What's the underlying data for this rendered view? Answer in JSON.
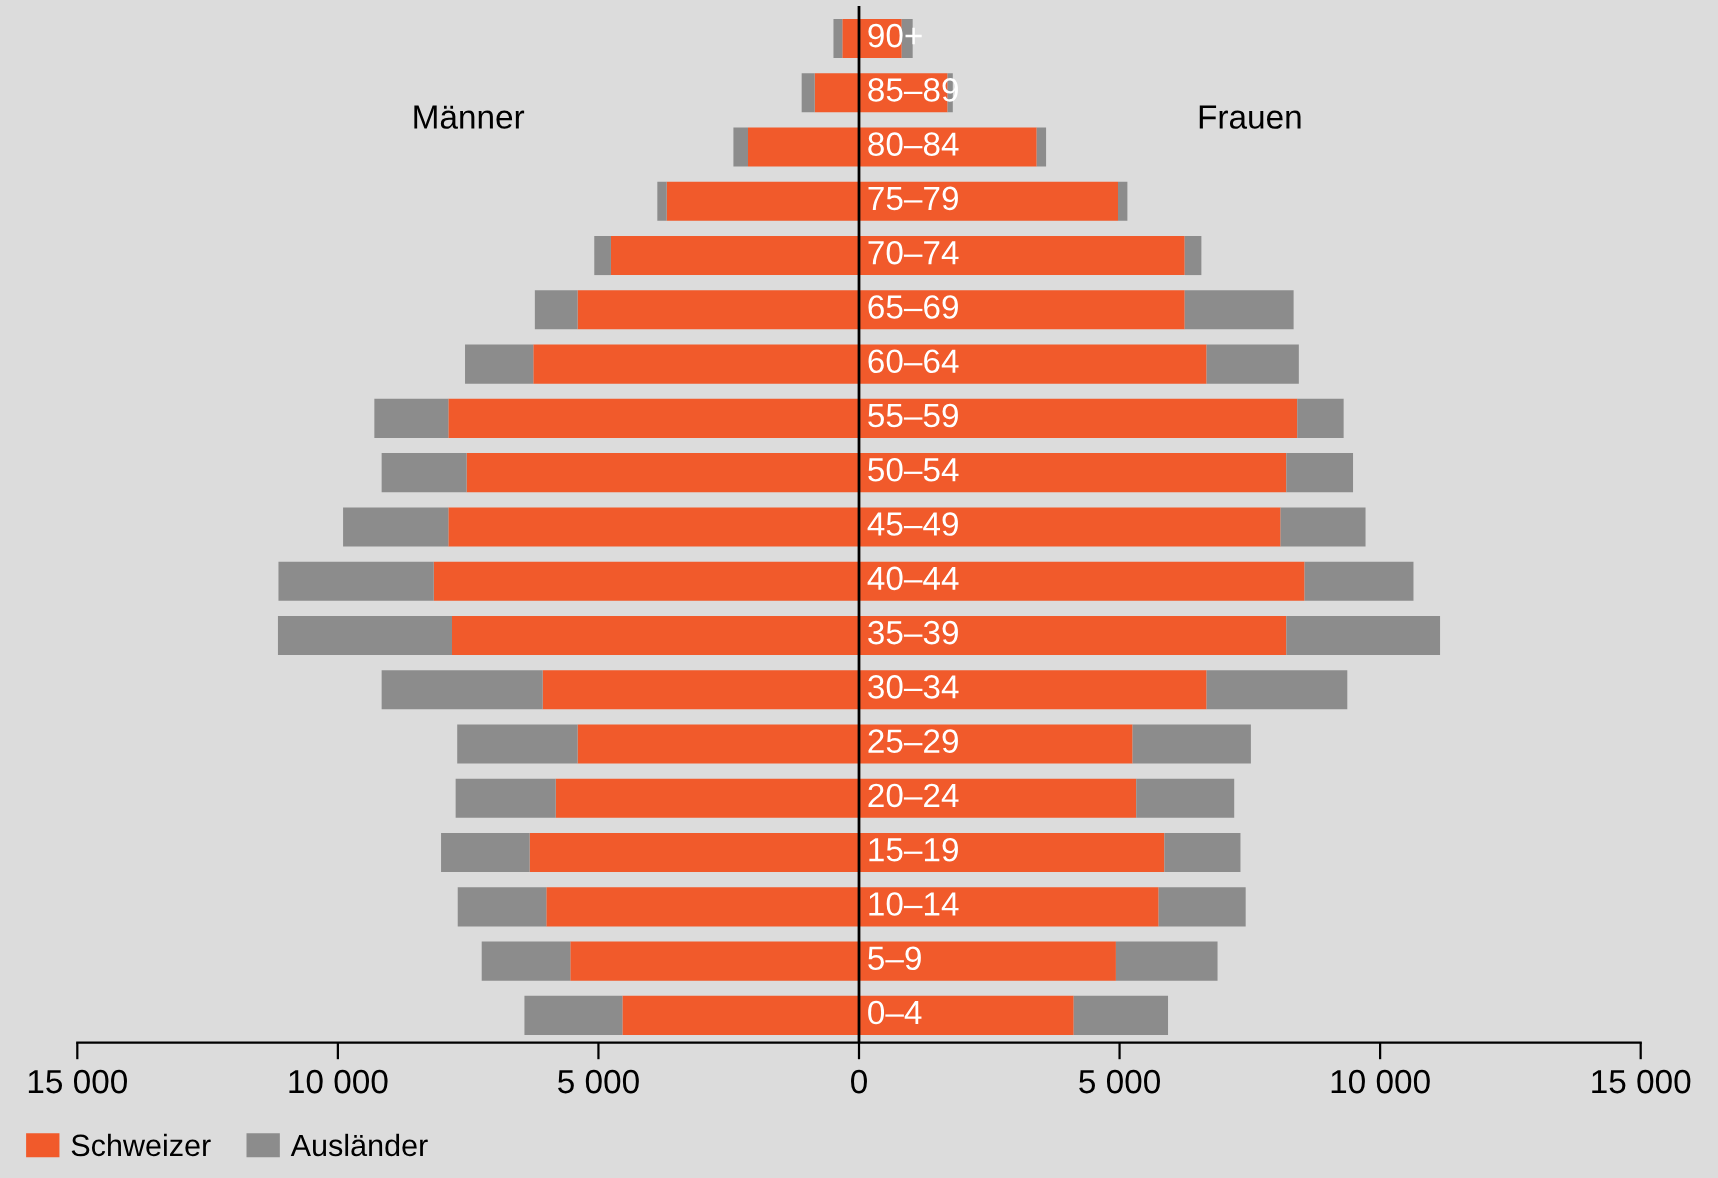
{
  "chart_data": {
    "type": "bar",
    "orientation": "horizontal",
    "stacked": true,
    "categories": [
      "90+",
      "85–89",
      "80–84",
      "75–79",
      "70–74",
      "65–69",
      "60–64",
      "55–59",
      "50–54",
      "45–49",
      "40–44",
      "35–39",
      "30–34",
      "25–29",
      "20–24",
      "15–19",
      "10–14",
      "5–9",
      "0–4"
    ],
    "series": [
      {
        "name": "Schweizer",
        "color": "#f15a2b",
        "values": [
          -320,
          -850,
          -2130,
          -3690,
          -4760,
          -5400,
          -6250,
          -7880,
          -7530,
          -7880,
          -8160,
          -7810,
          -6070,
          -5400,
          -5820,
          -6320,
          -6000,
          -5540,
          -4540
        ]
      },
      {
        "name": "Ausländer",
        "color": "#8c8c8c",
        "values": [
          -170,
          -250,
          -280,
          -180,
          -320,
          -820,
          -1310,
          -1420,
          -1630,
          -2020,
          -2980,
          -3340,
          -3090,
          -2310,
          -1920,
          -1700,
          -1700,
          -1700,
          -1880
        ]
      },
      {
        "color": "#f15a2b",
        "values": [
          820,
          1700,
          3410,
          4970,
          6250,
          6250,
          6670,
          8410,
          8200,
          8090,
          8550,
          8200,
          6670,
          5250,
          5320,
          5860,
          5750,
          4930,
          4120
        ]
      },
      {
        "color": "#8c8c8c",
        "values": [
          210,
          100,
          180,
          180,
          320,
          2090,
          1770,
          890,
          1280,
          1630,
          2090,
          2950,
          2700,
          2270,
          1880,
          1460,
          1670,
          1950,
          1810
        ]
      }
    ],
    "xlim": [
      -15000,
      15000
    ],
    "xticks": [
      {
        "value": -15000,
        "label": "15 000"
      },
      {
        "value": -10000,
        "label": "10 000"
      },
      {
        "value": -5000,
        "label": "5 000"
      },
      0,
      {
        "value": 5000,
        "label": "5 000"
      },
      {
        "value": 10000,
        "label": "10 000"
      },
      {
        "value": 15000,
        "label": "15 000"
      }
    ],
    "annotations": [
      "Männer",
      "Frauen"
    ],
    "legend": "bottom left",
    "grid": false
  }
}
